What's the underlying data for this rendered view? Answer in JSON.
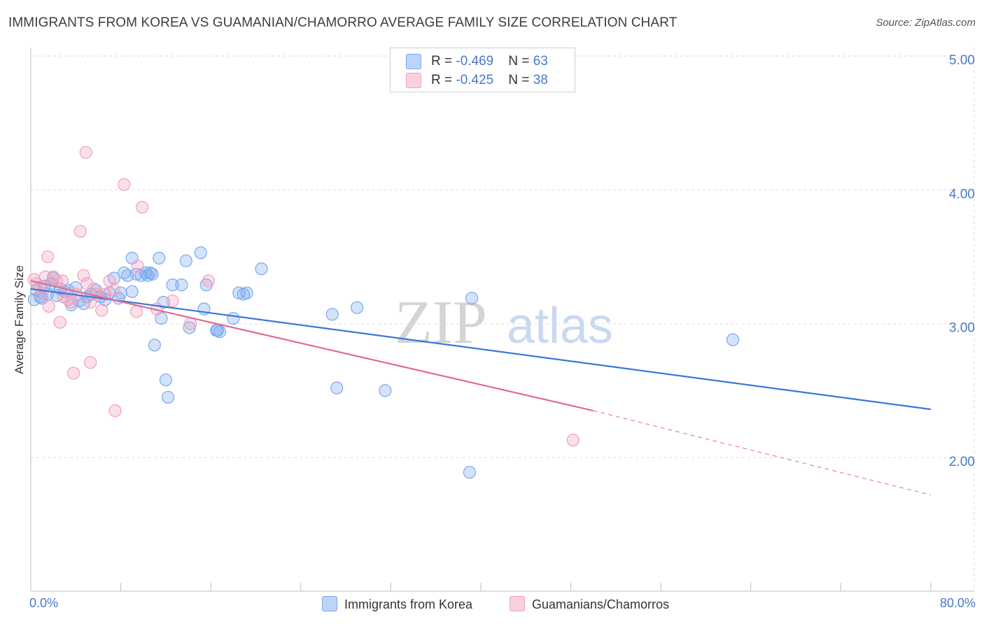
{
  "title": "IMMIGRANTS FROM KOREA VS GUAMANIAN/CHAMORRO AVERAGE FAMILY SIZE CORRELATION CHART",
  "source": "Source: ZipAtlas.com",
  "watermark": {
    "zip": "ZIP",
    "atlas": "atlas"
  },
  "legend_top": [
    {
      "r_label": "R = ",
      "r_value": "-0.469",
      "n_label": "N = ",
      "n_value": "63",
      "color": "#7aa8ee",
      "fill": "#bcd4f6"
    },
    {
      "r_label": "R = ",
      "r_value": "-0.425",
      "n_label": "N = ",
      "n_value": "38",
      "color": "#f0a0bb",
      "fill": "#fbd0de"
    }
  ],
  "legend_bottom": [
    {
      "label": "Immigrants from Korea",
      "color": "#7aa8ee",
      "fill": "#bcd4f6"
    },
    {
      "label": "Guamanians/Chamorros",
      "color": "#f0a0bb",
      "fill": "#fbd0de"
    }
  ],
  "chart_data": {
    "type": "scatter",
    "title": "IMMIGRANTS FROM KOREA VS GUAMANIAN/CHAMORRO AVERAGE FAMILY SIZE CORRELATION CHART",
    "xlabel": "",
    "ylabel": "Average Family Size",
    "x_tick_labels": [
      "0.0%",
      "80.0%"
    ],
    "y_tick_labels": [
      "2.00",
      "3.00",
      "4.00",
      "5.00"
    ],
    "y_ticks": [
      2,
      3,
      4,
      5
    ],
    "xlim": [
      0,
      80
    ],
    "ylim": [
      1.05,
      5.1
    ],
    "series": [
      {
        "name": "Immigrants from Korea",
        "color": "#3a78d8",
        "marker_fill": "rgba(122,168,238,0.32)",
        "marker_stroke": "#7aa8ee",
        "trend": {
          "x": [
            0,
            80
          ],
          "y": [
            3.26,
            2.36
          ],
          "dashed_from": null
        },
        "points": [
          [
            0.3,
            3.18
          ],
          [
            0.5,
            3.25
          ],
          [
            0.8,
            3.2
          ],
          [
            1.0,
            3.19
          ],
          [
            1.2,
            3.28
          ],
          [
            1.5,
            3.22
          ],
          [
            1.8,
            3.3
          ],
          [
            2.0,
            3.34
          ],
          [
            2.3,
            3.21
          ],
          [
            2.6,
            3.26
          ],
          [
            3.0,
            3.24
          ],
          [
            3.3,
            3.25
          ],
          [
            3.6,
            3.14
          ],
          [
            4.0,
            3.27
          ],
          [
            4.3,
            3.17
          ],
          [
            4.7,
            3.15
          ],
          [
            5.0,
            3.2
          ],
          [
            5.4,
            3.22
          ],
          [
            5.8,
            3.25
          ],
          [
            6.2,
            3.2
          ],
          [
            6.6,
            3.18
          ],
          [
            7.0,
            3.23
          ],
          [
            7.4,
            3.34
          ],
          [
            7.8,
            3.19
          ],
          [
            8.0,
            3.23
          ],
          [
            8.3,
            3.38
          ],
          [
            8.6,
            3.36
          ],
          [
            9.0,
            3.49
          ],
          [
            9.4,
            3.37
          ],
          [
            9.0,
            3.24
          ],
          [
            9.8,
            3.36
          ],
          [
            10.2,
            3.38
          ],
          [
            10.4,
            3.36
          ],
          [
            10.6,
            3.38
          ],
          [
            10.8,
            3.37
          ],
          [
            11.0,
            2.84
          ],
          [
            11.4,
            3.49
          ],
          [
            11.8,
            3.16
          ],
          [
            11.6,
            3.04
          ],
          [
            12.0,
            2.58
          ],
          [
            12.2,
            2.45
          ],
          [
            12.6,
            3.29
          ],
          [
            13.4,
            3.29
          ],
          [
            13.8,
            3.47
          ],
          [
            14.1,
            2.97
          ],
          [
            15.4,
            3.11
          ],
          [
            15.1,
            3.53
          ],
          [
            15.6,
            3.29
          ],
          [
            16.5,
            2.95
          ],
          [
            16.8,
            2.94
          ],
          [
            16.6,
            2.95
          ],
          [
            18.0,
            3.04
          ],
          [
            18.5,
            3.23
          ],
          [
            18.9,
            3.22
          ],
          [
            19.2,
            3.23
          ],
          [
            20.5,
            3.41
          ],
          [
            26.8,
            3.07
          ],
          [
            29.0,
            3.12
          ],
          [
            27.2,
            2.52
          ],
          [
            31.5,
            2.5
          ],
          [
            39.2,
            3.19
          ],
          [
            39.0,
            1.89
          ],
          [
            62.4,
            2.88
          ]
        ]
      },
      {
        "name": "Guamanians/Chamorros",
        "color": "#e06a93",
        "marker_fill": "rgba(240,160,187,0.32)",
        "marker_stroke": "#f0a0bb",
        "trend": {
          "x": [
            0,
            50,
            80
          ],
          "y": [
            3.32,
            2.35,
            1.72
          ],
          "dashed_from": 50
        },
        "points": [
          [
            0.3,
            3.33
          ],
          [
            0.5,
            3.3
          ],
          [
            0.8,
            3.27
          ],
          [
            1.0,
            3.23
          ],
          [
            1.3,
            3.35
          ],
          [
            1.6,
            3.13
          ],
          [
            2.0,
            3.35
          ],
          [
            2.3,
            3.32
          ],
          [
            2.6,
            3.01
          ],
          [
            2.9,
            3.2
          ],
          [
            3.3,
            3.18
          ],
          [
            3.6,
            3.16
          ],
          [
            4.0,
            3.22
          ],
          [
            4.4,
            3.69
          ],
          [
            4.7,
            3.36
          ],
          [
            5.0,
            3.3
          ],
          [
            5.3,
            3.16
          ],
          [
            5.6,
            3.26
          ],
          [
            5.9,
            3.22
          ],
          [
            6.3,
            3.1
          ],
          [
            6.6,
            3.22
          ],
          [
            1.5,
            3.5
          ],
          [
            4.9,
            4.28
          ],
          [
            8.3,
            4.04
          ],
          [
            9.9,
            3.87
          ],
          [
            9.5,
            3.43
          ],
          [
            7.0,
            3.32
          ],
          [
            7.4,
            3.25
          ],
          [
            9.4,
            3.09
          ],
          [
            11.2,
            3.11
          ],
          [
            12.6,
            3.17
          ],
          [
            14.2,
            3.0
          ],
          [
            15.8,
            3.32
          ],
          [
            5.3,
            2.71
          ],
          [
            3.8,
            2.63
          ],
          [
            7.5,
            2.35
          ],
          [
            2.8,
            3.32
          ],
          [
            48.2,
            2.13
          ]
        ]
      }
    ]
  }
}
